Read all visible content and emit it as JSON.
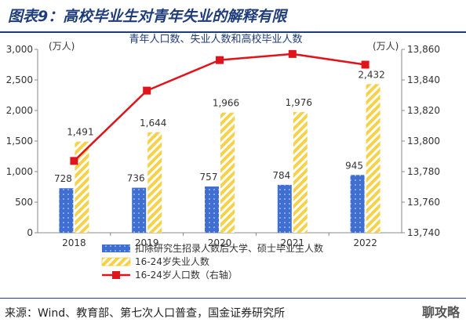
{
  "header": {
    "title": "图表9：高校毕业生对青年失业的解释有限"
  },
  "footer": {
    "source": "来源：Wind、教育部、第七次人口普查，国金证券研究所"
  },
  "watermark": "聊攻略",
  "colors": {
    "blue": "#3f6fd0",
    "yellow": "#f6d24a",
    "red": "#e0141b",
    "title": "#1f3d7a"
  },
  "chart_data": {
    "type": "bar",
    "title": "青年人口数、失业人数和高校毕业人数",
    "categories": [
      "2018",
      "2019",
      "2020",
      "2021",
      "2022"
    ],
    "left_axis": {
      "unit_label": "(万人)",
      "ylim": [
        0,
        3000
      ],
      "ticks": [
        "0",
        "500",
        "1,000",
        "1,500",
        "2,000",
        "2,500",
        "3,000"
      ]
    },
    "right_axis": {
      "unit_label": "(万人)",
      "ylim": [
        13740,
        13860
      ],
      "ticks": [
        "13,740",
        "13,760",
        "13,780",
        "13,800",
        "13,820",
        "13,840",
        "13,860"
      ]
    },
    "series": [
      {
        "name": "扣除研究生招录人数后大学、硕士毕业生人数",
        "type": "bar",
        "axis": "left",
        "values": [
          728,
          736,
          757,
          784,
          945
        ],
        "labels": [
          "728",
          "736",
          "757",
          "784",
          "945"
        ]
      },
      {
        "name": "16-24岁失业人数",
        "type": "bar",
        "axis": "left",
        "values": [
          1491,
          1644,
          1966,
          1976,
          2432
        ],
        "labels": [
          "1,491",
          "1,644",
          "1,966",
          "1,976",
          "2,432"
        ]
      },
      {
        "name": "16-24岁人口数（右轴）",
        "type": "line",
        "axis": "right",
        "values": [
          13787,
          13833,
          13853,
          13857,
          13850
        ]
      }
    ],
    "grid": false,
    "legend_position": "bottom"
  }
}
